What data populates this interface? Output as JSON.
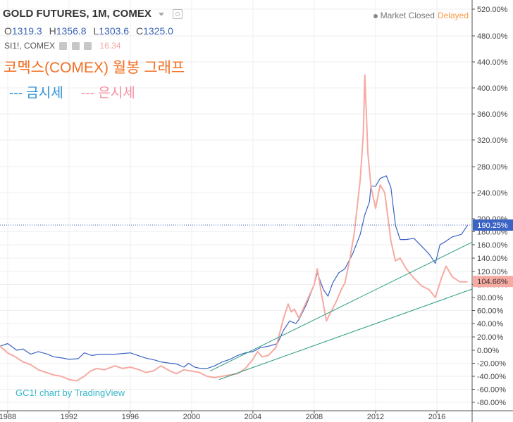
{
  "header": {
    "symbol_title": "GOLD FUTURES, 1M, COMEX",
    "ohlc": [
      {
        "k": "O",
        "v": "1319.3"
      },
      {
        "k": "H",
        "v": "1356.8"
      },
      {
        "k": "L",
        "v": "1303.6"
      },
      {
        "k": "C",
        "v": "1325.0"
      }
    ],
    "secondary_symbol": "SI1!, COMEX",
    "secondary_value": "16.34",
    "market_status": "Market Closed",
    "delay_status": "Delayed",
    "icons": [
      "dropdown-caret-icon",
      "settings-icon",
      "eye-icon",
      "gear-icon",
      "close-icon"
    ]
  },
  "annotation": {
    "title": "코멕스(COMEX) 월봉 그래프",
    "legend_gold": "--- 금시세",
    "legend_silver": "--- 은시세"
  },
  "watermark": "GC1! chart by TradingView",
  "colors": {
    "gold": "#3b63c4",
    "silver": "#f6aaa2",
    "trend": "#2c9b83",
    "annotation_title": "#f36f22",
    "legend_gold": "#2c8ed6",
    "legend_silver": "#f58ea0"
  },
  "chart_data": {
    "type": "line",
    "xlabel": "",
    "ylabel": "",
    "xlim": [
      1987.5,
      2018.3
    ],
    "ylim": [
      -85,
      528
    ],
    "x_ticks": [
      "1988",
      "1992",
      "1996",
      "2000",
      "2004",
      "2008",
      "2012",
      "2016"
    ],
    "y_ticks": [
      "-80.00%",
      "-60.00%",
      "-40.00%",
      "-20.00%",
      "0.00%",
      "20.00%",
      "40.00%",
      "60.00%",
      "80.00%",
      "100.00%",
      "120.00%",
      "140.00%",
      "160.00%",
      "180.00%",
      "200.00%",
      "240.00%",
      "280.00%",
      "320.00%",
      "360.00%",
      "400.00%",
      "440.00%",
      "480.00%",
      "520.00%"
    ],
    "grid": true,
    "price_labels": [
      {
        "series": "gold",
        "text": "190.25%",
        "value": 190.25
      },
      {
        "series": "silver",
        "text": "104.66%",
        "value": 104.66
      }
    ],
    "series": [
      {
        "key": "gold",
        "x": [
          1987.5,
          1988,
          1988.6,
          1989,
          1989.5,
          1990,
          1990.6,
          1991,
          1991.6,
          1992,
          1992.6,
          1993,
          1993.5,
          1994,
          1995,
          1996,
          1996.5,
          1997,
          1997.6,
          1998,
          1998.6,
          1999,
          1999.5,
          1999.8,
          2000.2,
          2000.6,
          2001,
          2001.5,
          2002,
          2002.5,
          2003,
          2003.5,
          2004,
          2004.5,
          2005,
          2005.6,
          2006,
          2006.4,
          2006.8,
          2007,
          2007.5,
          2008,
          2008.2,
          2008.6,
          2008.9,
          2009.2,
          2009.6,
          2010,
          2010.5,
          2011,
          2011.3,
          2011.6,
          2011.7,
          2012,
          2012.3,
          2012.7,
          2013,
          2013.3,
          2013.6,
          2014,
          2014.5,
          2015,
          2015.5,
          2015.9,
          2016.2,
          2016.5,
          2017,
          2017.6,
          2018
        ],
        "y": [
          6,
          10,
          0,
          2,
          -6,
          -2,
          -6,
          -10,
          -12,
          -14,
          -13,
          -4,
          -8,
          -6,
          -6,
          -4,
          -8,
          -12,
          -15,
          -18,
          -20,
          -21,
          -26,
          -20,
          -26,
          -28,
          -28,
          -24,
          -18,
          -14,
          -8,
          -4,
          -2,
          4,
          6,
          10,
          30,
          44,
          40,
          46,
          70,
          100,
          118,
          92,
          82,
          102,
          118,
          124,
          146,
          176,
          206,
          226,
          250,
          250,
          262,
          266,
          248,
          190,
          168,
          168,
          170,
          158,
          146,
          132,
          160,
          164,
          172,
          176,
          190
        ]
      },
      {
        "key": "silver",
        "x": [
          1987.5,
          1988,
          1988.5,
          1989,
          1989.5,
          1990,
          1990.5,
          1991,
          1991.5,
          1992,
          1992.5,
          1993,
          1993.4,
          1993.8,
          1994.3,
          1995,
          1995.5,
          1996,
          1996.6,
          1997,
          1997.5,
          1998,
          1998.3,
          1998.6,
          1999,
          1999.5,
          2000,
          2000.5,
          2001,
          2001.5,
          2002,
          2002.5,
          2003,
          2003.5,
          2004,
          2004.3,
          2004.6,
          2005,
          2005.5,
          2006,
          2006.3,
          2006.5,
          2006.7,
          2007,
          2007.5,
          2008,
          2008.2,
          2008.5,
          2008.8,
          2009,
          2009.4,
          2009.8,
          2010,
          2010.3,
          2010.6,
          2011,
          2011.2,
          2011.3,
          2011.5,
          2011.7,
          2012,
          2012.3,
          2012.6,
          2013,
          2013.3,
          2013.6,
          2014,
          2014.5,
          2015,
          2015.5,
          2015.9,
          2016.3,
          2016.6,
          2017,
          2017.5,
          2018
        ],
        "y": [
          6,
          -4,
          -10,
          -18,
          -22,
          -30,
          -34,
          -38,
          -40,
          -45,
          -47,
          -40,
          -32,
          -28,
          -30,
          -24,
          -28,
          -26,
          -30,
          -34,
          -32,
          -24,
          -28,
          -32,
          -36,
          -30,
          -32,
          -34,
          -40,
          -42,
          -40,
          -38,
          -36,
          -28,
          -14,
          -2,
          -10,
          -8,
          4,
          48,
          70,
          58,
          62,
          48,
          74,
          100,
          124,
          82,
          44,
          54,
          72,
          94,
          102,
          136,
          176,
          260,
          330,
          420,
          300,
          250,
          216,
          252,
          240,
          166,
          136,
          140,
          124,
          110,
          98,
          92,
          80,
          110,
          128,
          112,
          104,
          104
        ]
      }
    ],
    "trendlines": [
      {
        "x": [
          2001.2,
          2018.3
        ],
        "y": [
          -32,
          164
        ]
      },
      {
        "x": [
          2001.8,
          2018.3
        ],
        "y": [
          -45,
          93
        ]
      }
    ],
    "reference_lines": [
      {
        "y": 190.25,
        "style": "dotted"
      }
    ]
  }
}
